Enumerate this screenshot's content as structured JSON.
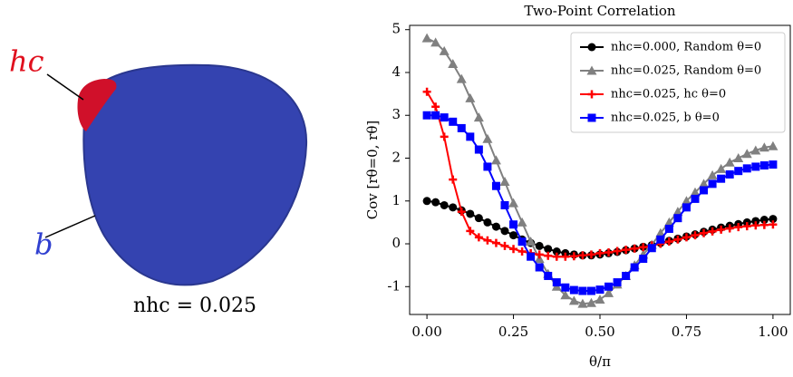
{
  "illustration": {
    "hc_label": "hc",
    "b_label": "b",
    "caption": "nhc = 0.025"
  },
  "chart_data": {
    "type": "line",
    "title": "Two-Point Correlation",
    "xlabel": "θ/π",
    "ylabel": "Cov [rθ=0, rθ]",
    "x": [
      0,
      0.025,
      0.05,
      0.075,
      0.1,
      0.125,
      0.15,
      0.175,
      0.2,
      0.225,
      0.25,
      0.275,
      0.3,
      0.325,
      0.35,
      0.375,
      0.4,
      0.425,
      0.45,
      0.475,
      0.5,
      0.525,
      0.55,
      0.575,
      0.6,
      0.625,
      0.65,
      0.675,
      0.7,
      0.725,
      0.75,
      0.775,
      0.8,
      0.825,
      0.85,
      0.875,
      0.9,
      0.925,
      0.95,
      0.975,
      1.0
    ],
    "series": [
      {
        "name": "nhc=0.000, Random θ=0",
        "color": "#000000",
        "marker": "circle",
        "values": [
          1.0,
          0.97,
          0.9,
          0.85,
          0.78,
          0.7,
          0.6,
          0.5,
          0.4,
          0.3,
          0.2,
          0.1,
          0.02,
          -0.05,
          -0.12,
          -0.18,
          -0.22,
          -0.25,
          -0.27,
          -0.27,
          -0.25,
          -0.22,
          -0.19,
          -0.15,
          -0.11,
          -0.07,
          -0.03,
          0.02,
          0.07,
          0.12,
          0.17,
          0.22,
          0.28,
          0.33,
          0.38,
          0.42,
          0.46,
          0.5,
          0.53,
          0.56,
          0.58
        ]
      },
      {
        "name": "nhc=0.025, Random θ=0",
        "color": "#808080",
        "marker": "triangle",
        "values": [
          4.8,
          4.7,
          4.5,
          4.2,
          3.85,
          3.4,
          2.95,
          2.45,
          1.95,
          1.45,
          0.95,
          0.5,
          0.05,
          -0.35,
          -0.7,
          -1.0,
          -1.2,
          -1.33,
          -1.4,
          -1.38,
          -1.3,
          -1.15,
          -0.95,
          -0.75,
          -0.5,
          -0.25,
          -0.02,
          0.25,
          0.5,
          0.75,
          1.0,
          1.2,
          1.4,
          1.6,
          1.75,
          1.9,
          2.0,
          2.1,
          2.18,
          2.25,
          2.28
        ]
      },
      {
        "name": "nhc=0.025, hc θ=0",
        "color": "#ff0000",
        "marker": "plus",
        "values": [
          3.55,
          3.2,
          2.5,
          1.5,
          0.75,
          0.3,
          0.15,
          0.08,
          0.02,
          -0.05,
          -0.12,
          -0.18,
          -0.22,
          -0.25,
          -0.28,
          -0.3,
          -0.3,
          -0.29,
          -0.27,
          -0.25,
          -0.22,
          -0.2,
          -0.17,
          -0.14,
          -0.11,
          -0.08,
          -0.04,
          0.0,
          0.05,
          0.1,
          0.15,
          0.2,
          0.25,
          0.29,
          0.33,
          0.36,
          0.39,
          0.41,
          0.43,
          0.44,
          0.45
        ]
      },
      {
        "name": "nhc=0.025, b θ=0",
        "color": "#0000ff",
        "marker": "square",
        "values": [
          3.0,
          3.0,
          2.95,
          2.85,
          2.7,
          2.5,
          2.2,
          1.8,
          1.35,
          0.9,
          0.45,
          0.05,
          -0.3,
          -0.55,
          -0.75,
          -0.9,
          -1.02,
          -1.08,
          -1.1,
          -1.1,
          -1.07,
          -1.0,
          -0.9,
          -0.75,
          -0.55,
          -0.35,
          -0.1,
          0.1,
          0.35,
          0.6,
          0.85,
          1.05,
          1.25,
          1.4,
          1.52,
          1.62,
          1.7,
          1.76,
          1.8,
          1.83,
          1.85
        ]
      }
    ],
    "xlim": [
      -0.05,
      1.05
    ],
    "ylim": [
      -1.65,
      5.1
    ],
    "xticks": [
      {
        "value": 0,
        "label": "0.00"
      },
      {
        "value": 0.25,
        "label": "0.25"
      },
      {
        "value": 0.5,
        "label": "0.50"
      },
      {
        "value": 0.75,
        "label": "0.75"
      },
      {
        "value": 1,
        "label": "1.00"
      }
    ],
    "yticks": [
      -1,
      0,
      1,
      2,
      3,
      4,
      5
    ],
    "legend": "upper right",
    "grid": false
  }
}
